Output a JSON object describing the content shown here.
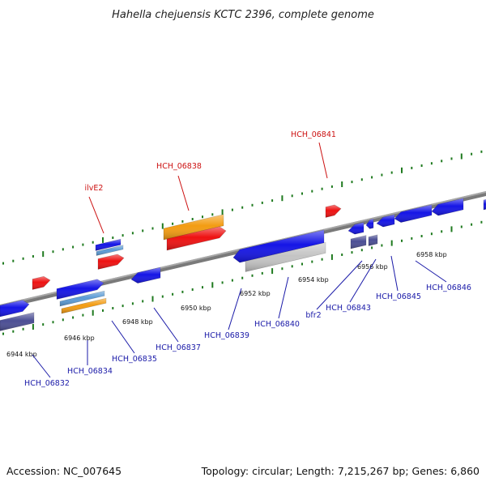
{
  "header": {
    "title": "Hahella chejuensis KCTC 2396, complete genome"
  },
  "footer": {
    "accession": "Accession: NC_007645",
    "summary": "Topology: circular; Length: 7,215,267 bp; Genes: 6,860"
  },
  "colors": {
    "backbone": "#888888",
    "tick": "#1f7a1f",
    "label_blue": "#1a1aa8",
    "label_red": "#cc1111",
    "gene_blue": "#1515e6",
    "gene_red": "#ee1111",
    "gene_orange": "#f39c12",
    "gene_steel": "#5b9bd5",
    "gene_slate": "#4b4e94",
    "gene_gray": "#c4c4c4"
  },
  "scale_labels": [
    "6944 kbp",
    "6946 kbp",
    "6948 kbp",
    "6950 kbp",
    "6952 kbp",
    "6954 kbp",
    "6956 kbp",
    "6958 kbp"
  ],
  "gene_labels": [
    {
      "text": "HCH_06832",
      "color": "blue"
    },
    {
      "text": "HCH_06834",
      "color": "blue"
    },
    {
      "text": "HCH_06835",
      "color": "blue"
    },
    {
      "text": "HCH_06837",
      "color": "blue"
    },
    {
      "text": "HCH_06839",
      "color": "blue"
    },
    {
      "text": "HCH_06840",
      "color": "blue"
    },
    {
      "text": "bfr2",
      "color": "blue"
    },
    {
      "text": "HCH_06843",
      "color": "blue"
    },
    {
      "text": "HCH_06845",
      "color": "blue"
    },
    {
      "text": "HCH_06846",
      "color": "blue"
    },
    {
      "text": "ilvE2",
      "color": "red"
    },
    {
      "text": "HCH_06838",
      "color": "red"
    },
    {
      "text": "HCH_06841",
      "color": "red"
    }
  ]
}
